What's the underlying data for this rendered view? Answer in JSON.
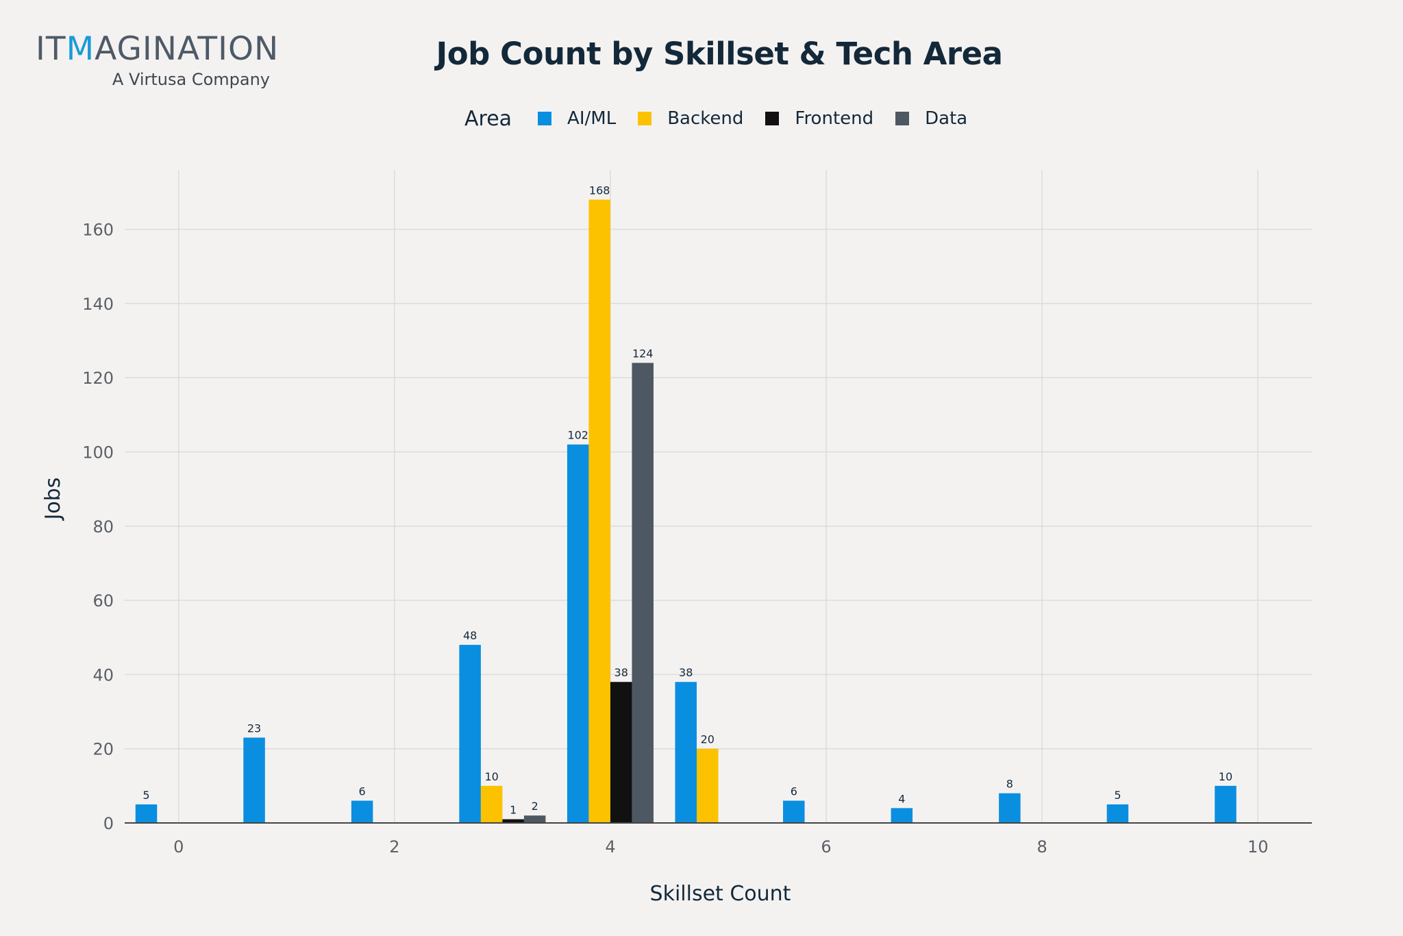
{
  "logo": {
    "brand_prefix": "IT",
    "brand_accent": "M",
    "brand_suffix": "AGINATION",
    "tagline": "A Virtusa Company"
  },
  "legend": {
    "title": "Area",
    "items": [
      {
        "label": "AI/ML",
        "color": "#0a8ee0"
      },
      {
        "label": "Backend",
        "color": "#fcc200"
      },
      {
        "label": "Frontend",
        "color": "#111111"
      },
      {
        "label": "Data",
        "color": "#4e5862"
      }
    ]
  },
  "chart_data": {
    "type": "bar",
    "title": "Job Count by Skillset & Tech Area",
    "xlabel": "Skillset Count",
    "ylabel": "Jobs",
    "xlim": [
      -0.5,
      10.5
    ],
    "ylim": [
      0,
      176
    ],
    "xticks": [
      0,
      2,
      4,
      6,
      8,
      10
    ],
    "yticks": [
      0,
      20,
      40,
      60,
      80,
      100,
      120,
      140,
      160
    ],
    "grid": true,
    "legend_position": "top",
    "show_data_labels": true,
    "series": [
      {
        "name": "AI/ML",
        "color": "#0a8ee0",
        "x": [
          0,
          1,
          2,
          3,
          4,
          5,
          6,
          7,
          8,
          9,
          10
        ],
        "values": [
          5,
          23,
          6,
          48,
          102,
          38,
          6,
          4,
          8,
          5,
          10
        ]
      },
      {
        "name": "Backend",
        "color": "#fcc200",
        "x": [
          3,
          4,
          5
        ],
        "values": [
          10,
          168,
          20
        ]
      },
      {
        "name": "Frontend",
        "color": "#111111",
        "x": [
          3,
          4
        ],
        "values": [
          1,
          38
        ]
      },
      {
        "name": "Data",
        "color": "#4e5862",
        "x": [
          3,
          4
        ],
        "values": [
          2,
          124
        ]
      }
    ]
  }
}
